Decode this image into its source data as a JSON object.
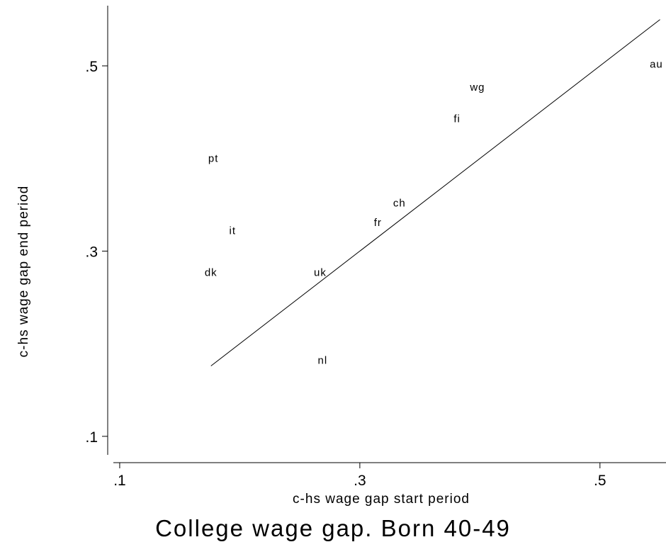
{
  "chart_data": {
    "type": "scatter",
    "title": "College wage gap. Born 40-49",
    "xlabel": "c-hs wage gap start period",
    "ylabel": "c-hs wage gap end period",
    "xlim": [
      0.09,
      0.555
    ],
    "ylim": [
      0.08,
      0.565
    ],
    "x_ticks": [
      0.1,
      0.3,
      0.5
    ],
    "x_tick_labels": [
      ".1",
      ".3",
      ".5"
    ],
    "y_ticks": [
      0.1,
      0.3,
      0.5
    ],
    "y_tick_labels": [
      ".1",
      ".3",
      ".5"
    ],
    "grid": false,
    "points": [
      {
        "label": "au",
        "x": 0.547,
        "y": 0.502
      },
      {
        "label": "wg",
        "x": 0.398,
        "y": 0.477
      },
      {
        "label": "fi",
        "x": 0.381,
        "y": 0.443
      },
      {
        "label": "pt",
        "x": 0.178,
        "y": 0.4
      },
      {
        "label": "ch",
        "x": 0.333,
        "y": 0.352
      },
      {
        "label": "fr",
        "x": 0.315,
        "y": 0.331
      },
      {
        "label": "it",
        "x": 0.194,
        "y": 0.322
      },
      {
        "label": "dk",
        "x": 0.176,
        "y": 0.277
      },
      {
        "label": "uk",
        "x": 0.267,
        "y": 0.277
      },
      {
        "label": "nl",
        "x": 0.269,
        "y": 0.182
      }
    ],
    "line": {
      "x": [
        0.176,
        0.55
      ],
      "y": [
        0.176,
        0.55
      ]
    }
  }
}
